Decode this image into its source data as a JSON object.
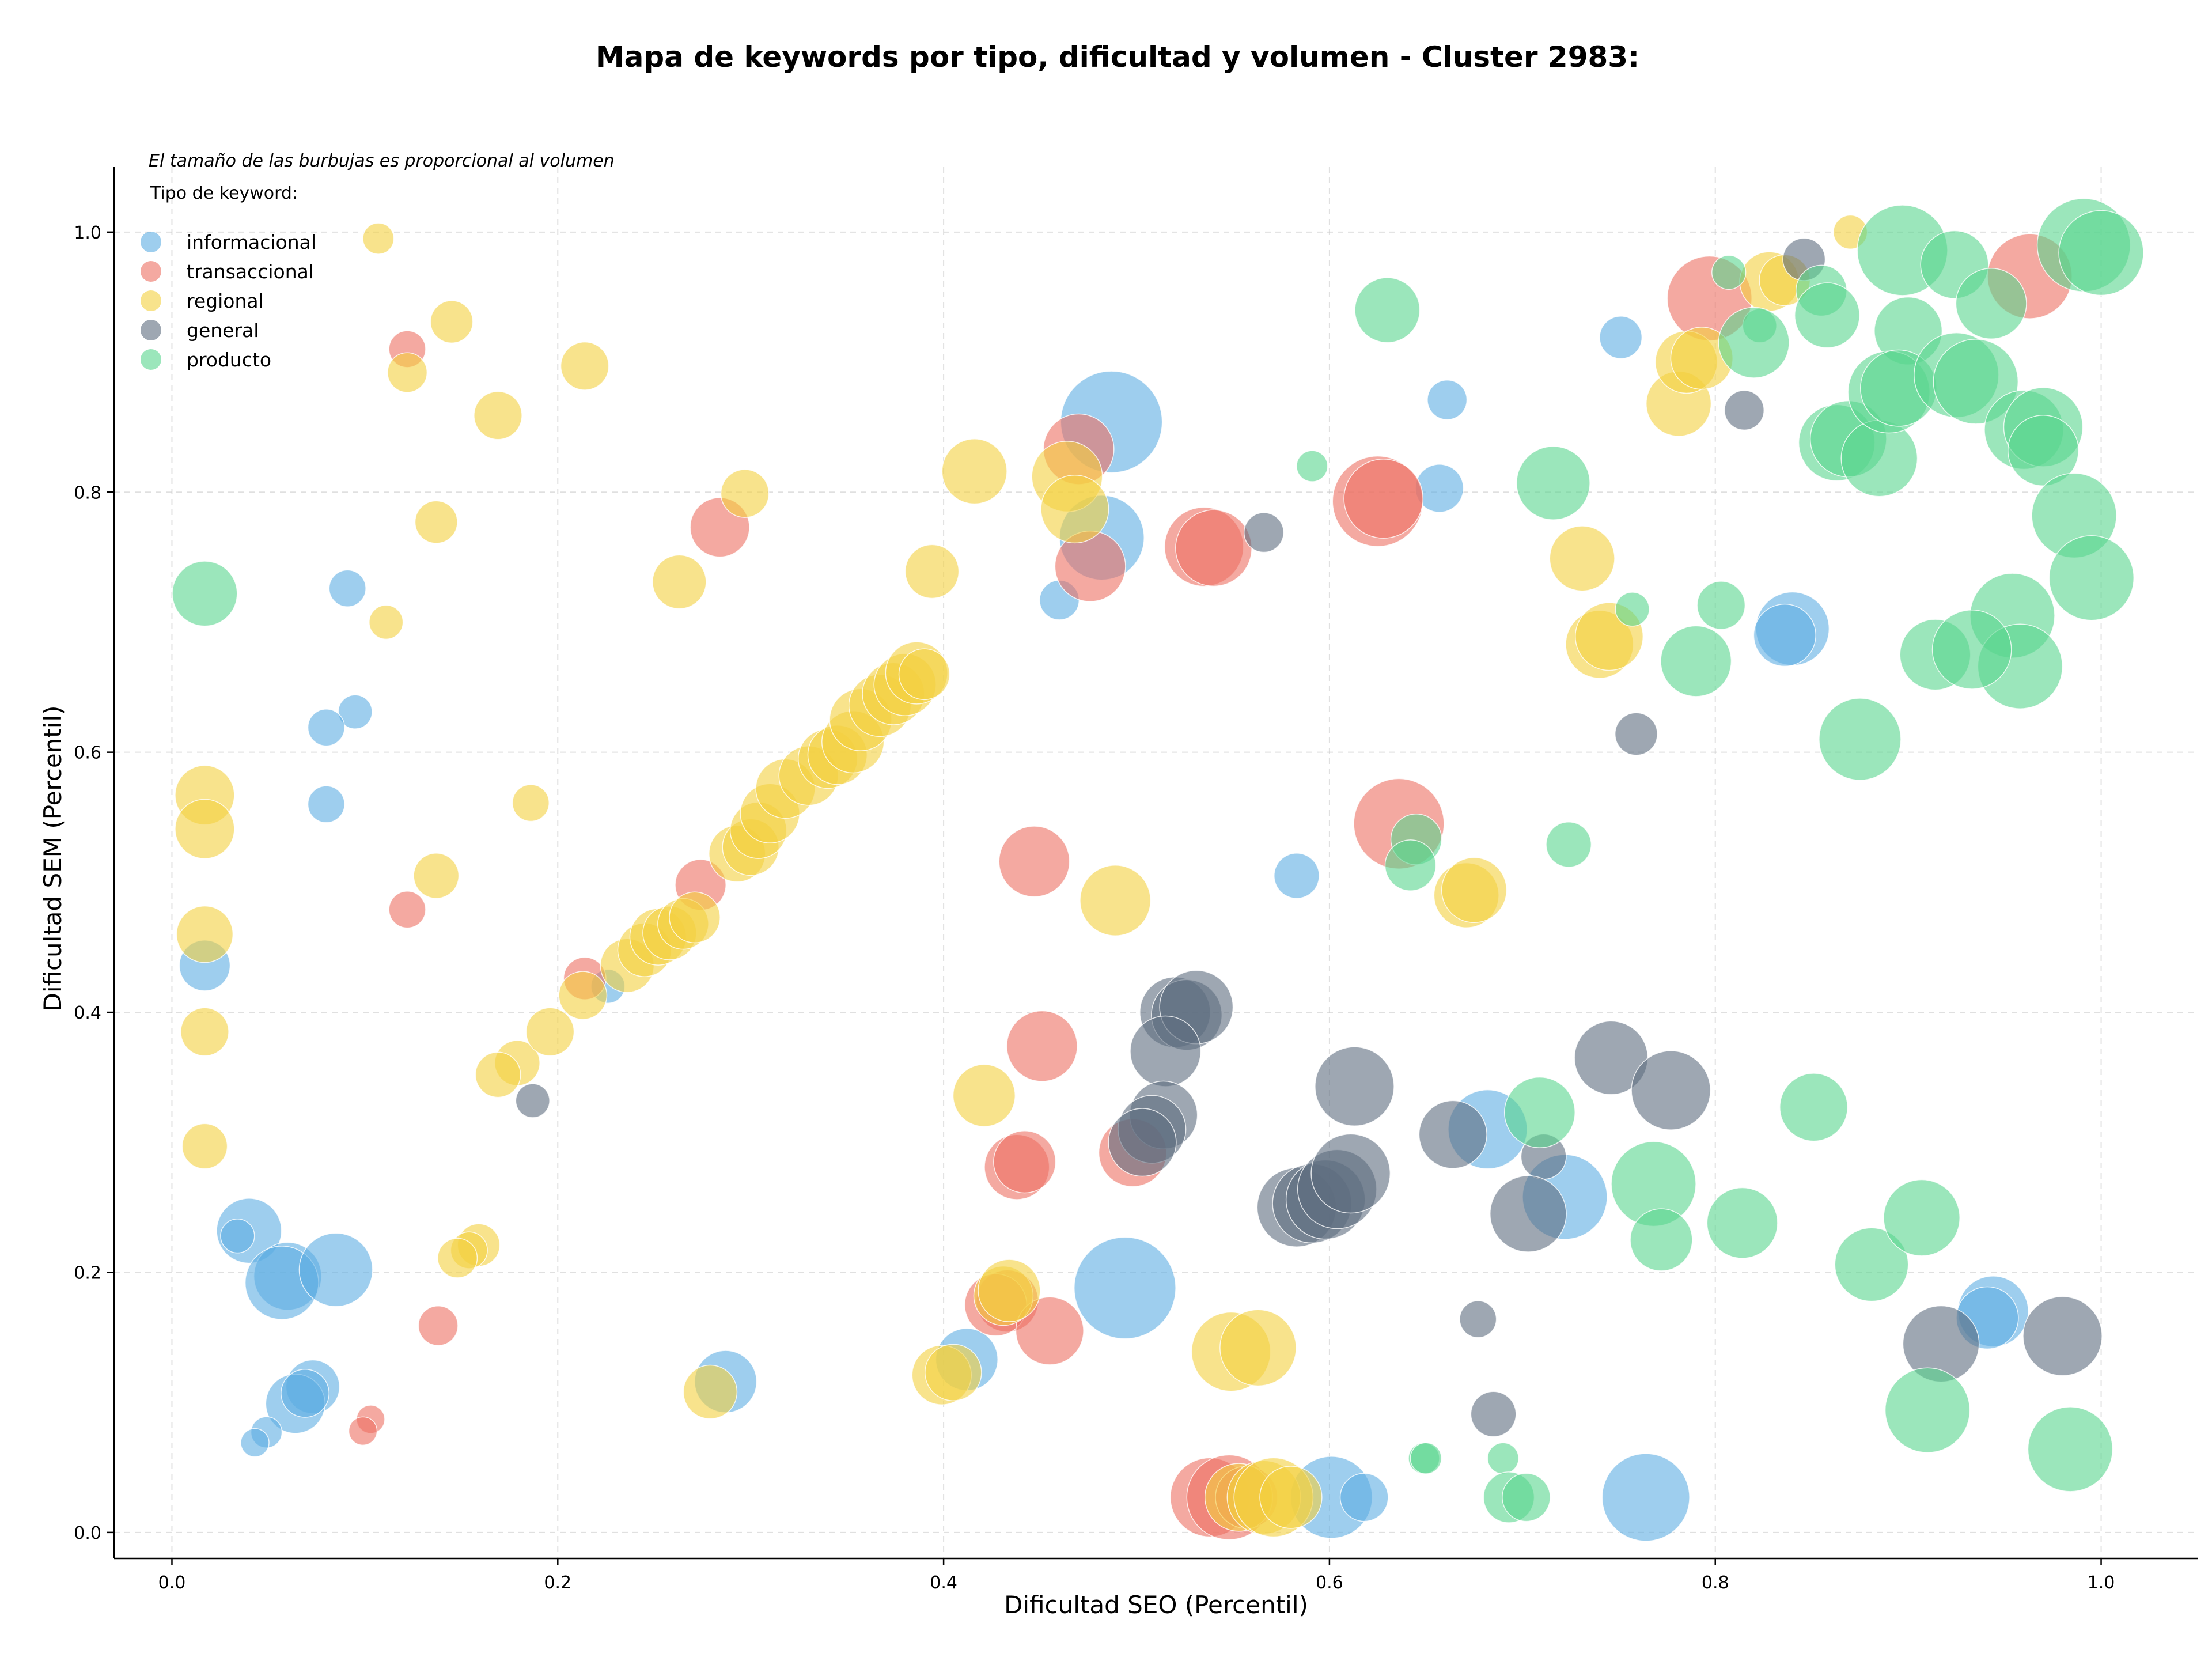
{
  "chart_data": {
    "type": "scatter",
    "title": "Mapa de keywords por tipo, dificultad y volumen - Cluster 2983:",
    "xlabel": "Dificultad SEO (Percentil)",
    "ylabel": "Dificultad SEM (Percentil)",
    "xlim": [
      -0.03,
      1.05
    ],
    "ylim": [
      -0.02,
      1.05
    ],
    "xticks": [
      "0.0",
      "0.2",
      "0.4",
      "0.6",
      "0.8",
      "1.0"
    ],
    "yticks": [
      "0.0",
      "0.2",
      "0.4",
      "0.6",
      "0.8",
      "1.0"
    ],
    "grid": true,
    "note": "El tamaño de las burbujas es proporcional al volumen",
    "legend_title": "Tipo de keyword:",
    "legend_position": "top-left",
    "series": [
      {
        "name": "informacional",
        "color": "#5DADE2",
        "points": [
          [
            0.487,
            0.854,
            36
          ],
          [
            0.482,
            0.765,
            30
          ],
          [
            0.46,
            0.717,
            14
          ],
          [
            0.751,
            0.919,
            15
          ],
          [
            0.661,
            0.871,
            14
          ],
          [
            0.657,
            0.803,
            17
          ],
          [
            0.84,
            0.695,
            26
          ],
          [
            0.836,
            0.69,
            22
          ],
          [
            0.091,
            0.726,
            13
          ],
          [
            0.095,
            0.631,
            12
          ],
          [
            0.08,
            0.619,
            13
          ],
          [
            0.08,
            0.56,
            13
          ],
          [
            0.017,
            0.436,
            18
          ],
          [
            0.226,
            0.42,
            12
          ],
          [
            0.04,
            0.232,
            23
          ],
          [
            0.034,
            0.228,
            12
          ],
          [
            0.06,
            0.197,
            24
          ],
          [
            0.057,
            0.192,
            26
          ],
          [
            0.085,
            0.202,
            26
          ],
          [
            0.073,
            0.112,
            19
          ],
          [
            0.064,
            0.099,
            21
          ],
          [
            0.069,
            0.107,
            17
          ],
          [
            0.049,
            0.077,
            11
          ],
          [
            0.043,
            0.069,
            10
          ],
          [
            0.287,
            0.116,
            22
          ],
          [
            0.412,
            0.133,
            22
          ],
          [
            0.494,
            0.188,
            36
          ],
          [
            0.583,
            0.505,
            16
          ],
          [
            0.682,
            0.31,
            28
          ],
          [
            0.722,
            0.258,
            30
          ],
          [
            0.601,
            0.027,
            29
          ],
          [
            0.618,
            0.027,
            17
          ],
          [
            0.764,
            0.027,
            31
          ],
          [
            0.944,
            0.17,
            25
          ],
          [
            0.941,
            0.165,
            22
          ]
        ]
      },
      {
        "name": "transaccional",
        "color": "#EC7063",
        "points": [
          [
            0.122,
            0.91,
            13
          ],
          [
            0.284,
            0.773,
            21
          ],
          [
            0.47,
            0.833,
            25
          ],
          [
            0.476,
            0.743,
            25
          ],
          [
            0.535,
            0.758,
            28
          ],
          [
            0.54,
            0.757,
            27
          ],
          [
            0.625,
            0.793,
            32
          ],
          [
            0.628,
            0.795,
            28
          ],
          [
            0.797,
            0.949,
            30
          ],
          [
            0.963,
            0.966,
            30
          ],
          [
            0.122,
            0.479,
            13
          ],
          [
            0.274,
            0.498,
            18
          ],
          [
            0.214,
            0.426,
            15
          ],
          [
            0.447,
            0.516,
            25
          ],
          [
            0.636,
            0.545,
            32
          ],
          [
            0.451,
            0.374,
            25
          ],
          [
            0.438,
            0.281,
            23
          ],
          [
            0.442,
            0.285,
            22
          ],
          [
            0.498,
            0.292,
            24
          ],
          [
            0.433,
            0.178,
            22
          ],
          [
            0.427,
            0.175,
            22
          ],
          [
            0.455,
            0.155,
            24
          ],
          [
            0.138,
            0.159,
            14
          ],
          [
            0.103,
            0.087,
            10
          ],
          [
            0.099,
            0.078,
            10
          ],
          [
            0.538,
            0.027,
            28
          ],
          [
            0.548,
            0.027,
            30
          ],
          [
            0.557,
            0.027,
            22
          ]
        ]
      },
      {
        "name": "regional",
        "color": "#F4D03F",
        "points": [
          [
            0.107,
            0.995,
            11
          ],
          [
            0.87,
            1.0,
            12
          ],
          [
            0.145,
            0.931,
            15
          ],
          [
            0.122,
            0.892,
            14
          ],
          [
            0.214,
            0.897,
            17
          ],
          [
            0.169,
            0.859,
            17
          ],
          [
            0.137,
            0.777,
            15
          ],
          [
            0.297,
            0.799,
            17
          ],
          [
            0.416,
            0.816,
            23
          ],
          [
            0.464,
            0.812,
            25
          ],
          [
            0.468,
            0.787,
            24
          ],
          [
            0.263,
            0.731,
            19
          ],
          [
            0.394,
            0.739,
            19
          ],
          [
            0.111,
            0.7,
            12
          ],
          [
            0.017,
            0.567,
            21
          ],
          [
            0.017,
            0.541,
            21
          ],
          [
            0.186,
            0.561,
            13
          ],
          [
            0.137,
            0.505,
            16
          ],
          [
            0.017,
            0.46,
            20
          ],
          [
            0.017,
            0.385,
            17
          ],
          [
            0.017,
            0.297,
            16
          ],
          [
            0.179,
            0.361,
            16
          ],
          [
            0.169,
            0.352,
            16
          ],
          [
            0.196,
            0.385,
            17
          ],
          [
            0.159,
            0.221,
            15
          ],
          [
            0.154,
            0.217,
            13
          ],
          [
            0.148,
            0.211,
            14
          ],
          [
            0.213,
            0.413,
            17
          ],
          [
            0.236,
            0.436,
            19
          ],
          [
            0.245,
            0.448,
            19
          ],
          [
            0.252,
            0.458,
            20
          ],
          [
            0.258,
            0.461,
            19
          ],
          [
            0.265,
            0.468,
            18
          ],
          [
            0.271,
            0.473,
            18
          ],
          [
            0.293,
            0.522,
            20
          ],
          [
            0.3,
            0.527,
            20
          ],
          [
            0.304,
            0.54,
            20
          ],
          [
            0.31,
            0.553,
            21
          ],
          [
            0.318,
            0.572,
            21
          ],
          [
            0.33,
            0.582,
            21
          ],
          [
            0.34,
            0.595,
            21
          ],
          [
            0.345,
            0.598,
            21
          ],
          [
            0.353,
            0.608,
            22
          ],
          [
            0.357,
            0.625,
            22
          ],
          [
            0.367,
            0.636,
            22
          ],
          [
            0.374,
            0.645,
            22
          ],
          [
            0.38,
            0.652,
            22
          ],
          [
            0.386,
            0.661,
            22
          ],
          [
            0.39,
            0.66,
            18
          ],
          [
            0.421,
            0.336,
            22
          ],
          [
            0.489,
            0.486,
            25
          ],
          [
            0.671,
            0.49,
            23
          ],
          [
            0.675,
            0.494,
            23
          ],
          [
            0.731,
            0.749,
            23
          ],
          [
            0.74,
            0.683,
            24
          ],
          [
            0.745,
            0.689,
            24
          ],
          [
            0.781,
            0.868,
            23
          ],
          [
            0.785,
            0.9,
            22
          ],
          [
            0.793,
            0.903,
            22
          ],
          [
            0.828,
            0.962,
            21
          ],
          [
            0.836,
            0.963,
            18
          ],
          [
            0.279,
            0.108,
            19
          ],
          [
            0.399,
            0.121,
            21
          ],
          [
            0.405,
            0.123,
            20
          ],
          [
            0.431,
            0.182,
            21
          ],
          [
            0.434,
            0.186,
            22
          ],
          [
            0.549,
            0.139,
            28
          ],
          [
            0.563,
            0.142,
            27
          ],
          [
            0.553,
            0.027,
            24
          ],
          [
            0.566,
            0.027,
            26
          ],
          [
            0.571,
            0.027,
            28
          ],
          [
            0.58,
            0.027,
            22
          ]
        ]
      },
      {
        "name": "general",
        "color": "#5D6D7E",
        "points": [
          [
            0.566,
            0.769,
            14
          ],
          [
            0.846,
            0.979,
            15
          ],
          [
            0.815,
            0.863,
            14
          ],
          [
            0.759,
            0.614,
            15
          ],
          [
            0.187,
            0.332,
            12
          ],
          [
            0.52,
            0.4,
            25
          ],
          [
            0.526,
            0.398,
            25
          ],
          [
            0.531,
            0.404,
            26
          ],
          [
            0.515,
            0.37,
            25
          ],
          [
            0.613,
            0.343,
            28
          ],
          [
            0.746,
            0.365,
            26
          ],
          [
            0.777,
            0.34,
            28
          ],
          [
            0.514,
            0.321,
            24
          ],
          [
            0.508,
            0.31,
            24
          ],
          [
            0.503,
            0.3,
            24
          ],
          [
            0.664,
            0.306,
            24
          ],
          [
            0.711,
            0.289,
            16
          ],
          [
            0.703,
            0.245,
            27
          ],
          [
            0.583,
            0.25,
            28
          ],
          [
            0.591,
            0.253,
            28
          ],
          [
            0.598,
            0.256,
            28
          ],
          [
            0.604,
            0.264,
            28
          ],
          [
            0.611,
            0.276,
            28
          ],
          [
            0.677,
            0.164,
            13
          ],
          [
            0.685,
            0.091,
            16
          ],
          [
            0.917,
            0.145,
            27
          ],
          [
            0.98,
            0.151,
            28
          ]
        ]
      },
      {
        "name": "producto",
        "color": "#58D68D",
        "points": [
          [
            0.017,
            0.722,
            23
          ],
          [
            0.63,
            0.94,
            23
          ],
          [
            0.591,
            0.82,
            11
          ],
          [
            0.807,
            0.969,
            12
          ],
          [
            0.823,
            0.928,
            12
          ],
          [
            0.82,
            0.915,
            25
          ],
          [
            0.855,
            0.955,
            18
          ],
          [
            0.858,
            0.936,
            23
          ],
          [
            0.897,
            0.986,
            32
          ],
          [
            0.924,
            0.975,
            24
          ],
          [
            0.9,
            0.924,
            24
          ],
          [
            0.943,
            0.945,
            25
          ],
          [
            0.991,
            0.99,
            33
          ],
          [
            1.0,
            0.984,
            30
          ],
          [
            0.716,
            0.807,
            26
          ],
          [
            0.757,
            0.71,
            12
          ],
          [
            0.803,
            0.713,
            17
          ],
          [
            0.79,
            0.67,
            25
          ],
          [
            0.863,
            0.838,
            27
          ],
          [
            0.869,
            0.841,
            27
          ],
          [
            0.885,
            0.826,
            27
          ],
          [
            0.89,
            0.877,
            29
          ],
          [
            0.895,
            0.88,
            27
          ],
          [
            0.925,
            0.89,
            30
          ],
          [
            0.935,
            0.885,
            30
          ],
          [
            0.96,
            0.848,
            28
          ],
          [
            0.97,
            0.85,
            28
          ],
          [
            0.97,
            0.832,
            25
          ],
          [
            0.986,
            0.782,
            30
          ],
          [
            0.995,
            0.734,
            30
          ],
          [
            0.954,
            0.705,
            30
          ],
          [
            0.958,
            0.666,
            30
          ],
          [
            0.914,
            0.675,
            25
          ],
          [
            0.933,
            0.679,
            28
          ],
          [
            0.875,
            0.61,
            29
          ],
          [
            0.645,
            0.533,
            18
          ],
          [
            0.642,
            0.513,
            18
          ],
          [
            0.724,
            0.529,
            16
          ],
          [
            0.709,
            0.323,
            25
          ],
          [
            0.768,
            0.268,
            30
          ],
          [
            0.772,
            0.225,
            22
          ],
          [
            0.814,
            0.238,
            25
          ],
          [
            0.851,
            0.327,
            24
          ],
          [
            0.881,
            0.206,
            26
          ],
          [
            0.907,
            0.242,
            27
          ],
          [
            0.91,
            0.094,
            30
          ],
          [
            0.984,
            0.064,
            30
          ],
          [
            0.649,
            0.057,
            11
          ],
          [
            0.65,
            0.057,
            11
          ],
          [
            0.69,
            0.057,
            11
          ],
          [
            0.693,
            0.027,
            18
          ],
          [
            0.702,
            0.027,
            17
          ]
        ]
      }
    ]
  }
}
